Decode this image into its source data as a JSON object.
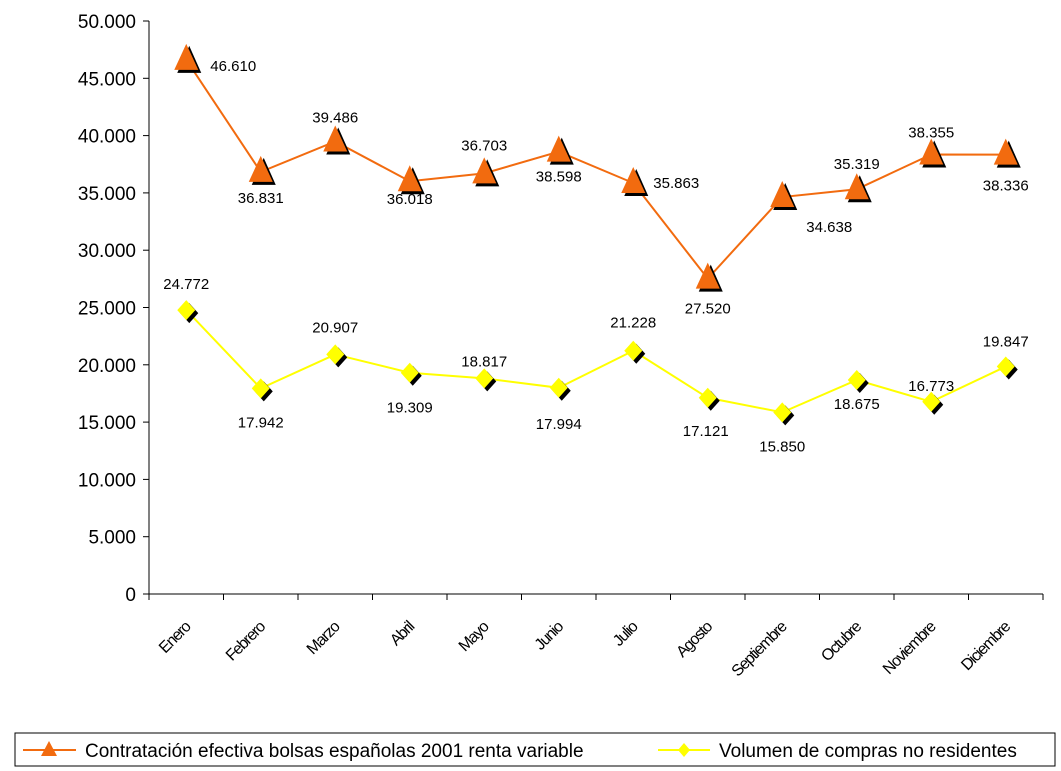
{
  "chart_data": {
    "type": "line",
    "categories": [
      "Enero",
      "Febrero",
      "Marzo",
      "Abril",
      "Mayo",
      "Junio",
      "Julio",
      "Agosto",
      "Septiembre",
      "Octubre",
      "Noviembre",
      "Diciembre"
    ],
    "series": [
      {
        "name": "Contratación efectiva bolsas españolas 2001 renta variable",
        "values": [
          46610,
          36831,
          39486,
          36018,
          36703,
          38598,
          35863,
          27520,
          34638,
          35319,
          38355,
          38336
        ],
        "labels": [
          "46.610",
          "36.831",
          "39.486",
          "36.018",
          "36.703",
          "38.598",
          "35.863",
          "27.520",
          "34.638",
          "35.319",
          "38.355",
          "38.336"
        ],
        "color": "#F26B0F",
        "marker": "triangle"
      },
      {
        "name": "Volumen de compras no residentes",
        "values": [
          24772,
          17942,
          20907,
          19309,
          18817,
          17994,
          21228,
          17121,
          15850,
          18675,
          16773,
          19847
        ],
        "labels": [
          "24.772",
          "17.942",
          "20.907",
          "19.309",
          "18.817",
          "17.994",
          "21.228",
          "17.121",
          "15.850",
          "18.675",
          "16.773",
          "19.847"
        ],
        "color": "#FFFF00",
        "marker": "diamond"
      }
    ],
    "ylim": [
      0,
      50000
    ],
    "yticks": [
      0,
      5000,
      10000,
      15000,
      20000,
      25000,
      30000,
      35000,
      40000,
      45000,
      50000
    ],
    "ytick_labels": [
      "0",
      "5.000",
      "10.000",
      "15.000",
      "20.000",
      "25.000",
      "30.000",
      "35.000",
      "40.000",
      "45.000",
      "50.000"
    ],
    "grid": false,
    "legend_position": "bottom"
  }
}
